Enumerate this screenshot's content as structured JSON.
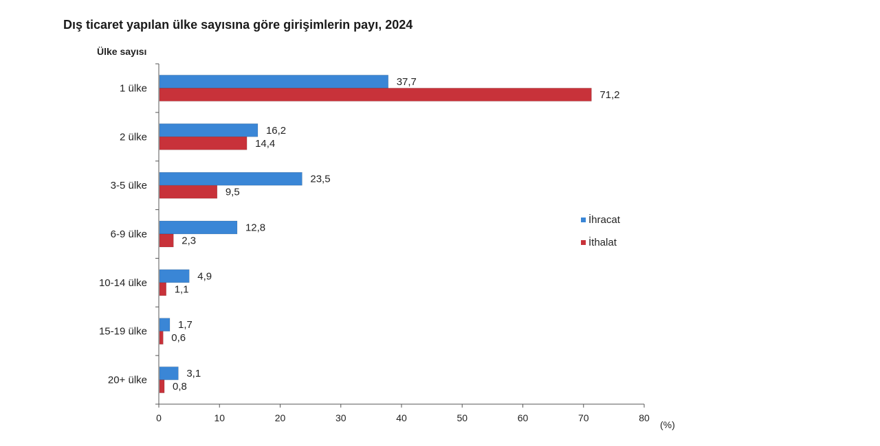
{
  "colors": {
    "ihracat": "#3a86d6",
    "ithalat": "#c8323a",
    "axis": "#555555",
    "text": "#222222"
  },
  "chart_data": {
    "type": "bar",
    "orientation": "horizontal",
    "title": "Dış ticaret yapılan ülke sayısına göre girişimlerin payı, 2024",
    "ylabel": "Ülke sayısı",
    "xlabel": "",
    "unit_label": "(%)",
    "xlim": [
      0,
      80
    ],
    "xticks": [
      "0",
      "10",
      "20",
      "30",
      "40",
      "50",
      "60",
      "70",
      "80"
    ],
    "grid": false,
    "legend_position": "right",
    "categories": [
      "1 ülke",
      "2 ülke",
      "3-5 ülke",
      "6-9 ülke",
      "10-14 ülke",
      "15-19 ülke",
      "20+ ülke"
    ],
    "series": [
      {
        "name": "İhracat",
        "color": "#3a86d6",
        "values": [
          37.7,
          16.2,
          23.5,
          12.8,
          4.9,
          1.7,
          3.1
        ],
        "labels": [
          "37,7",
          "16,2",
          "23,5",
          "12,8",
          "4,9",
          "1,7",
          "3,1"
        ]
      },
      {
        "name": "İthalat",
        "color": "#c8323a",
        "values": [
          71.2,
          14.4,
          9.5,
          2.3,
          1.1,
          0.6,
          0.8
        ],
        "labels": [
          "71,2",
          "14,4",
          "9,5",
          "2,3",
          "1,1",
          "0,6",
          "0,8"
        ]
      }
    ]
  }
}
